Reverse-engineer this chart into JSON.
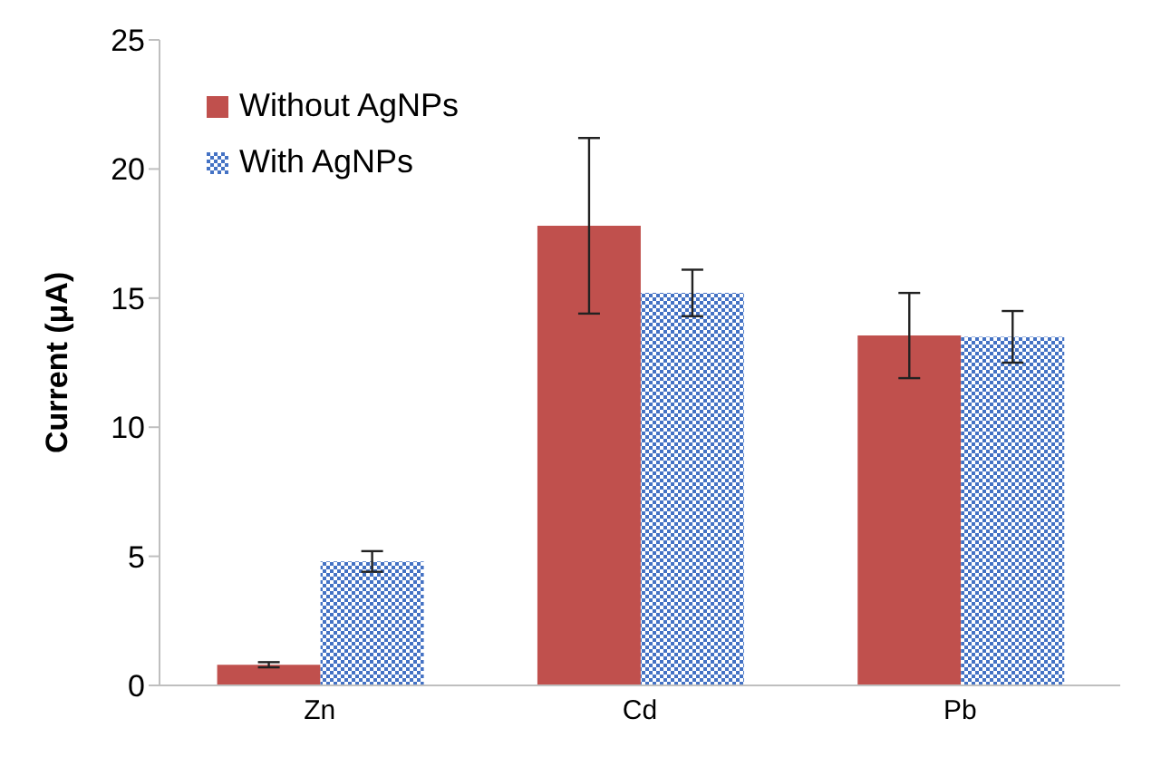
{
  "chart_data": {
    "type": "bar",
    "ylabel": "Current (μA)",
    "categories": [
      "Zn",
      "Cd",
      "Pb"
    ],
    "series": [
      {
        "name": "Without AgNPs",
        "color": "#c0504d",
        "values": [
          0.8,
          17.8,
          13.55
        ],
        "errors": [
          0.1,
          3.4,
          1.65
        ]
      },
      {
        "name": "With AgNPs",
        "color": "#4472c4",
        "values": [
          4.8,
          15.2,
          13.5
        ],
        "errors": [
          0.4,
          0.9,
          1.0
        ]
      }
    ],
    "ylim": [
      0,
      25
    ],
    "yticks": [
      0,
      5,
      10,
      15,
      20,
      25
    ],
    "grid": false,
    "legend": "top left"
  }
}
